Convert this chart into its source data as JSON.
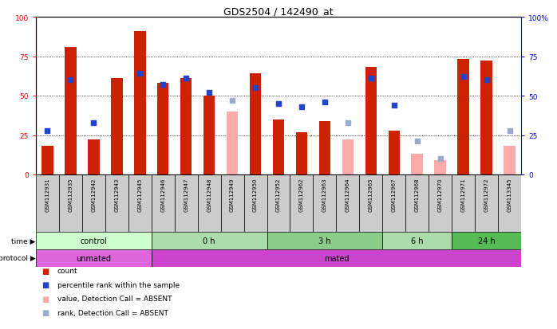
{
  "title": "GDS2504 / 142490_at",
  "samples": [
    "GSM112931",
    "GSM112935",
    "GSM112942",
    "GSM112943",
    "GSM112945",
    "GSM112946",
    "GSM112947",
    "GSM112948",
    "GSM112949",
    "GSM112950",
    "GSM112952",
    "GSM112962",
    "GSM112963",
    "GSM112964",
    "GSM112965",
    "GSM112967",
    "GSM112968",
    "GSM112970",
    "GSM112971",
    "GSM112972",
    "GSM113345"
  ],
  "count_values": [
    18,
    81,
    22,
    61,
    91,
    58,
    61,
    50,
    null,
    64,
    35,
    27,
    34,
    null,
    68,
    28,
    null,
    null,
    73,
    72,
    null
  ],
  "count_absent": [
    null,
    null,
    null,
    null,
    null,
    null,
    null,
    null,
    40,
    null,
    null,
    null,
    null,
    22,
    null,
    null,
    13,
    9,
    null,
    null,
    18
  ],
  "rank_values": [
    28,
    60,
    33,
    null,
    64,
    57,
    61,
    52,
    null,
    55,
    45,
    43,
    46,
    null,
    61,
    44,
    null,
    null,
    62,
    60,
    null
  ],
  "rank_absent": [
    null,
    null,
    null,
    null,
    null,
    null,
    null,
    null,
    47,
    null,
    null,
    null,
    null,
    33,
    null,
    null,
    21,
    10,
    null,
    null,
    28
  ],
  "time_groups": [
    {
      "label": "control",
      "start": 0,
      "end": 5,
      "color": "#ccffcc"
    },
    {
      "label": "0 h",
      "start": 5,
      "end": 10,
      "color": "#aaddaa"
    },
    {
      "label": "3 h",
      "start": 10,
      "end": 15,
      "color": "#88cc88"
    },
    {
      "label": "6 h",
      "start": 15,
      "end": 18,
      "color": "#aaddaa"
    },
    {
      "label": "24 h",
      "start": 18,
      "end": 21,
      "color": "#55bb55"
    }
  ],
  "protocol_groups": [
    {
      "label": "unmated",
      "start": 0,
      "end": 5,
      "color": "#dd66dd"
    },
    {
      "label": "mated",
      "start": 5,
      "end": 21,
      "color": "#cc44cc"
    }
  ],
  "ylim": [
    0,
    100
  ],
  "yticks": [
    0,
    25,
    50,
    75,
    100
  ],
  "bar_color_red": "#cc2200",
  "bar_color_pink": "#ffaaaa",
  "dot_color_blue": "#2244cc",
  "dot_color_lightblue": "#99aacc",
  "bg_sample_color": "#cccccc",
  "legend_items": [
    {
      "color": "#cc2200",
      "label": "count"
    },
    {
      "color": "#2244cc",
      "label": "percentile rank within the sample"
    },
    {
      "color": "#ffaaaa",
      "label": "value, Detection Call = ABSENT"
    },
    {
      "color": "#99aacc",
      "label": "rank, Detection Call = ABSENT"
    }
  ]
}
